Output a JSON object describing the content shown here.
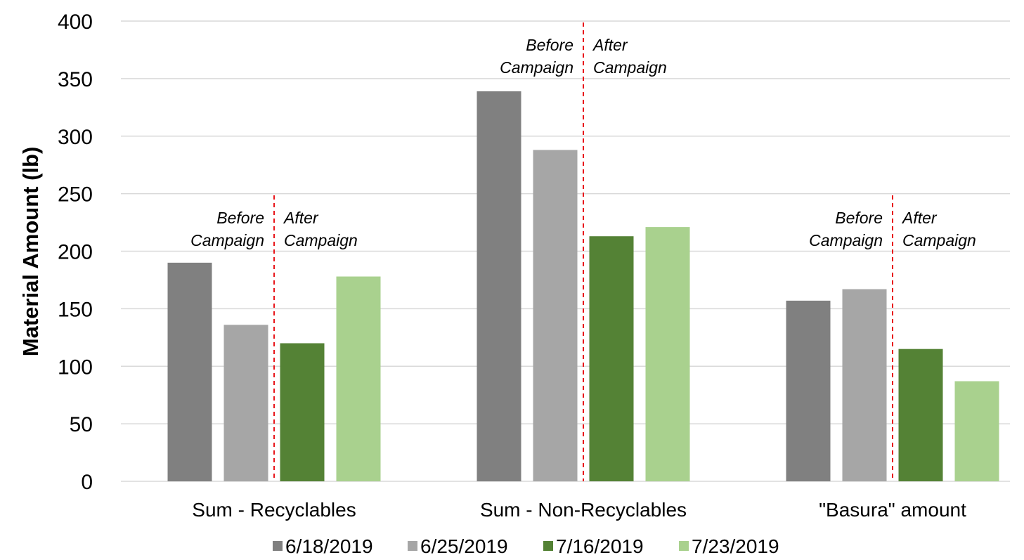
{
  "chart_data": {
    "type": "bar",
    "ylabel": "Material Amount (lb)",
    "ylim": [
      0,
      400
    ],
    "yticks": [
      0,
      50,
      100,
      150,
      200,
      250,
      300,
      350,
      400
    ],
    "grid": true,
    "legend_position": "bottom",
    "categories": [
      "Sum - Recyclables",
      "Sum - Non-Recyclables",
      "\"Basura\" amount"
    ],
    "series": [
      {
        "name": "6/18/2019",
        "color": "#808080",
        "values": [
          190,
          339,
          157
        ]
      },
      {
        "name": "6/25/2019",
        "color": "#a6a6a6",
        "values": [
          136,
          288,
          167
        ]
      },
      {
        "name": "7/16/2019",
        "color": "#548235",
        "values": [
          120,
          213,
          115
        ]
      },
      {
        "name": "7/23/2019",
        "color": "#a9d18e",
        "values": [
          178,
          221,
          87
        ]
      }
    ],
    "annotations": {
      "divider_color": "#e8161b",
      "before_line1": "Before",
      "before_line2": "Campaign",
      "after_line1": "After",
      "after_line2": "Campaign"
    }
  }
}
